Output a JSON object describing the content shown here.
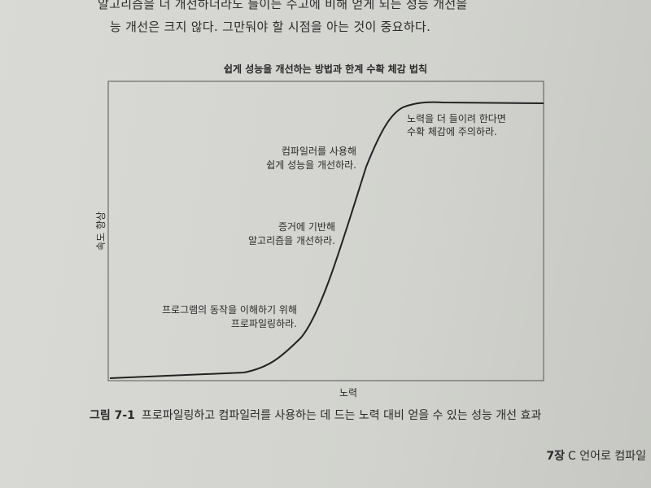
{
  "page": {
    "text": [
      "알고리즘을 더 개선하더라도 들이는 수고에 비해 얻게 되는 성능 개선을",
      "능 개선은 크지 않다. 그만둬야 할 시점을 아는 것이 중요하다."
    ]
  },
  "figure": {
    "title": "쉽게 성능을 개선하는 방법과 한계 수확 체감 법칙",
    "y_label": "속도 향상",
    "x_label": "노력",
    "annotations": [
      [
        "노력을 더 들이려 한다면",
        "수확 체감에 주의하라."
      ],
      [
        "컴파일러를 사용해",
        "쉽게 성능을 개선하라."
      ],
      [
        "증거에 기반해",
        "알고리즘을 개선하라."
      ],
      [
        "프로그램의 동작을 이해하기 위해",
        "프로파일링하라."
      ]
    ],
    "caption": {
      "number": "그림 7-1",
      "text": "프로파일링하고 컴파일러를 사용하는 데 드는 노력 대비 얻을 수 있는 성능 개선 효과"
    }
  },
  "footer": {
    "chapter": "7장",
    "title": "C 언어로 컴파일"
  }
}
